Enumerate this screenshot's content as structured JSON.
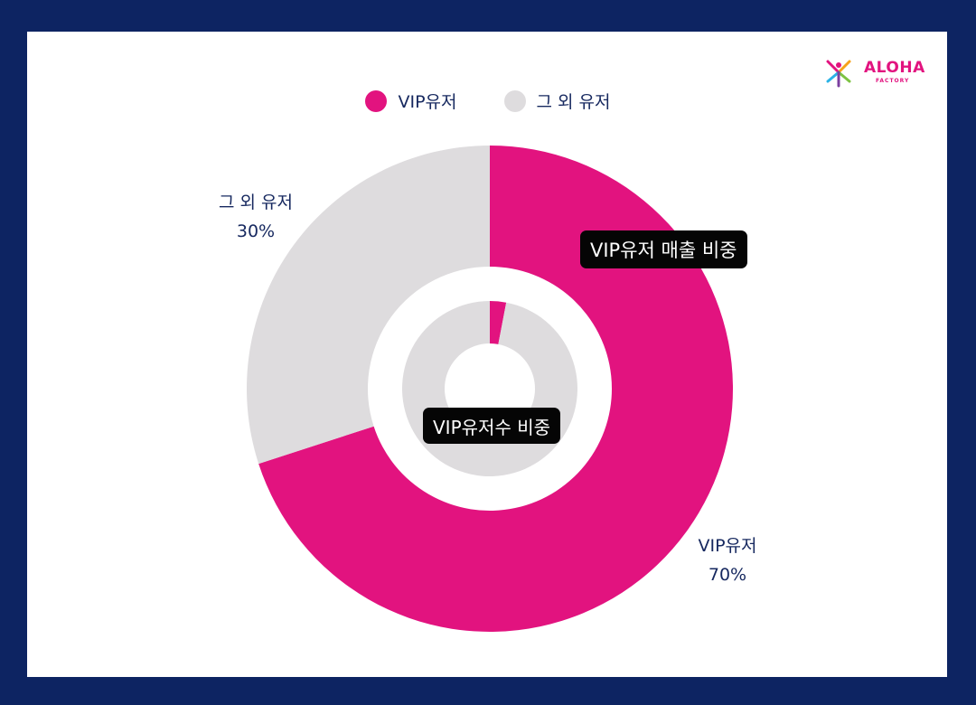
{
  "colors": {
    "frame": "#0d2462",
    "vip": "#e2137f",
    "other": "#dedcde",
    "label_text": "#16285f"
  },
  "logo": {
    "name": "ALOHA",
    "sub": "FACTORY",
    "icon": "aloha-factory-logo"
  },
  "legend": [
    {
      "label": "VIP유저",
      "color": "#e2137f"
    },
    {
      "label": "그 외 유저",
      "color": "#dedcde"
    }
  ],
  "chart_data": [
    {
      "type": "pie",
      "title": "VIP유저 매출 비중",
      "ring": "outer",
      "series": [
        {
          "name": "VIP유저",
          "value": 70,
          "label": "VIP유저",
          "value_label": "70%"
        },
        {
          "name": "그 외 유저",
          "value": 30,
          "label": "그 외 유저",
          "value_label": "30%"
        }
      ]
    },
    {
      "type": "pie",
      "title": "VIP유저수 비중",
      "ring": "inner",
      "series": [
        {
          "name": "VIP유저",
          "value": 3
        },
        {
          "name": "그 외 유저",
          "value": 97
        }
      ]
    }
  ]
}
